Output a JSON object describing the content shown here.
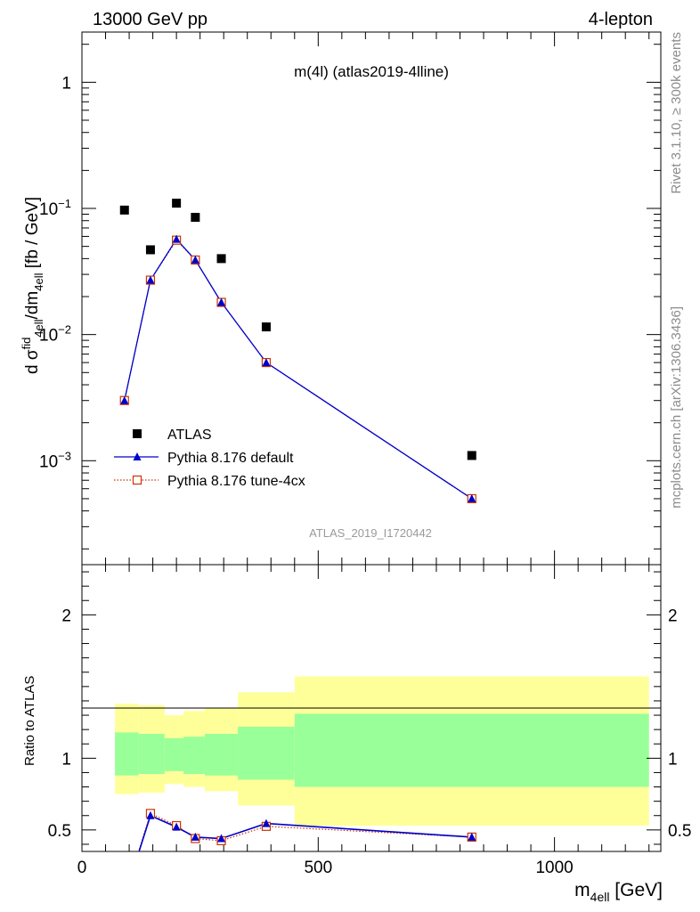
{
  "header": {
    "left": "13000 GeV pp",
    "right": "4-lepton"
  },
  "side_labels": {
    "top": "Rivet 3.1.10, ≥ 300k events",
    "bottom": "mcplots.cern.ch [arXiv:1306.3436]"
  },
  "plot_title": "m(4l) (atlas2019-4lline)",
  "watermark": "ATLAS_2019_I1720442",
  "colors": {
    "atlas": "#000000",
    "default": "#0000cc",
    "tune": "#cc3300",
    "band_inner": "#99ff99",
    "band_outer": "#ffff99",
    "gray_text": "#8c8c8c"
  },
  "chart_data": [
    {
      "type": "scatter",
      "panel": "main",
      "ylabel_parts": [
        "d σ",
        "fid",
        "4ell",
        "/dm",
        "4ell",
        " [fb / GeV]"
      ],
      "yscale": "log",
      "xlim": [
        0,
        1225
      ],
      "ylim": [
        0.00015,
        2.5
      ],
      "y_tick_labels": [
        {
          "value": 1,
          "base": "1",
          "exp": ""
        },
        {
          "value": 0.1,
          "base": "10",
          "exp": "−1"
        },
        {
          "value": 0.01,
          "base": "10",
          "exp": "−2"
        },
        {
          "value": 0.001,
          "base": "10",
          "exp": "−3"
        }
      ],
      "legend_position": "lower-left",
      "series": [
        {
          "name": "ATLAS",
          "marker": "square",
          "x": [
            90,
            145,
            200,
            240,
            295,
            390,
            825
          ],
          "y": [
            0.097,
            0.047,
            0.11,
            0.085,
            0.04,
            0.0115,
            0.0011
          ]
        },
        {
          "name": "Pythia 8.176 default",
          "marker": "triangle",
          "line": "solid",
          "x": [
            90,
            145,
            200,
            240,
            295,
            390,
            825
          ],
          "y": [
            0.003,
            0.027,
            0.057,
            0.039,
            0.018,
            0.006,
            0.0005
          ]
        },
        {
          "name": "Pythia 8.176 tune-4cx",
          "marker": "open-square",
          "line": "dotted",
          "x": [
            90,
            145,
            200,
            240,
            295,
            390,
            825
          ],
          "y": [
            0.003,
            0.027,
            0.056,
            0.039,
            0.018,
            0.006,
            0.0005
          ]
        }
      ]
    },
    {
      "type": "line",
      "panel": "ratio",
      "ylabel": "Ratio to ATLAS",
      "xlabel_parts": [
        "m",
        "4ell",
        " [GeV]"
      ],
      "xlim": [
        0,
        1225
      ],
      "ylim": [
        0.35,
        2.35
      ],
      "x_tick_labels": [
        "0",
        "500",
        "1000"
      ],
      "x_ticks": [
        0,
        500,
        1000
      ],
      "y_tick_labels": [
        "0.5",
        "1",
        "2"
      ],
      "y_ticks": [
        0.5,
        1,
        2
      ],
      "bands": [
        {
          "x0": 70,
          "x1": 120,
          "inner": [
            0.88,
            1.18
          ],
          "outer": [
            0.75,
            1.38
          ]
        },
        {
          "x0": 120,
          "x1": 175,
          "inner": [
            0.89,
            1.17
          ],
          "outer": [
            0.76,
            1.37
          ]
        },
        {
          "x0": 175,
          "x1": 215,
          "inner": [
            0.91,
            1.14
          ],
          "outer": [
            0.82,
            1.3
          ]
        },
        {
          "x0": 215,
          "x1": 260,
          "inner": [
            0.89,
            1.15
          ],
          "outer": [
            0.8,
            1.33
          ]
        },
        {
          "x0": 260,
          "x1": 330,
          "inner": [
            0.88,
            1.17
          ],
          "outer": [
            0.77,
            1.35
          ]
        },
        {
          "x0": 330,
          "x1": 450,
          "inner": [
            0.85,
            1.22
          ],
          "outer": [
            0.67,
            1.46
          ]
        },
        {
          "x0": 450,
          "x1": 1200,
          "inner": [
            0.8,
            1.31
          ],
          "outer": [
            0.53,
            1.57
          ]
        }
      ],
      "series": [
        {
          "name": "Pythia 8.176 default",
          "x": [
            90,
            145,
            200,
            240,
            295,
            390,
            825
          ],
          "y": [
            0.031,
            0.6,
            0.52,
            0.45,
            0.44,
            0.545,
            0.45
          ]
        },
        {
          "name": "Pythia 8.176 tune-4cx",
          "x": [
            90,
            145,
            200,
            240,
            295,
            390,
            825
          ],
          "y": [
            0.031,
            0.615,
            0.53,
            0.44,
            0.425,
            0.525,
            0.45
          ]
        }
      ]
    }
  ]
}
